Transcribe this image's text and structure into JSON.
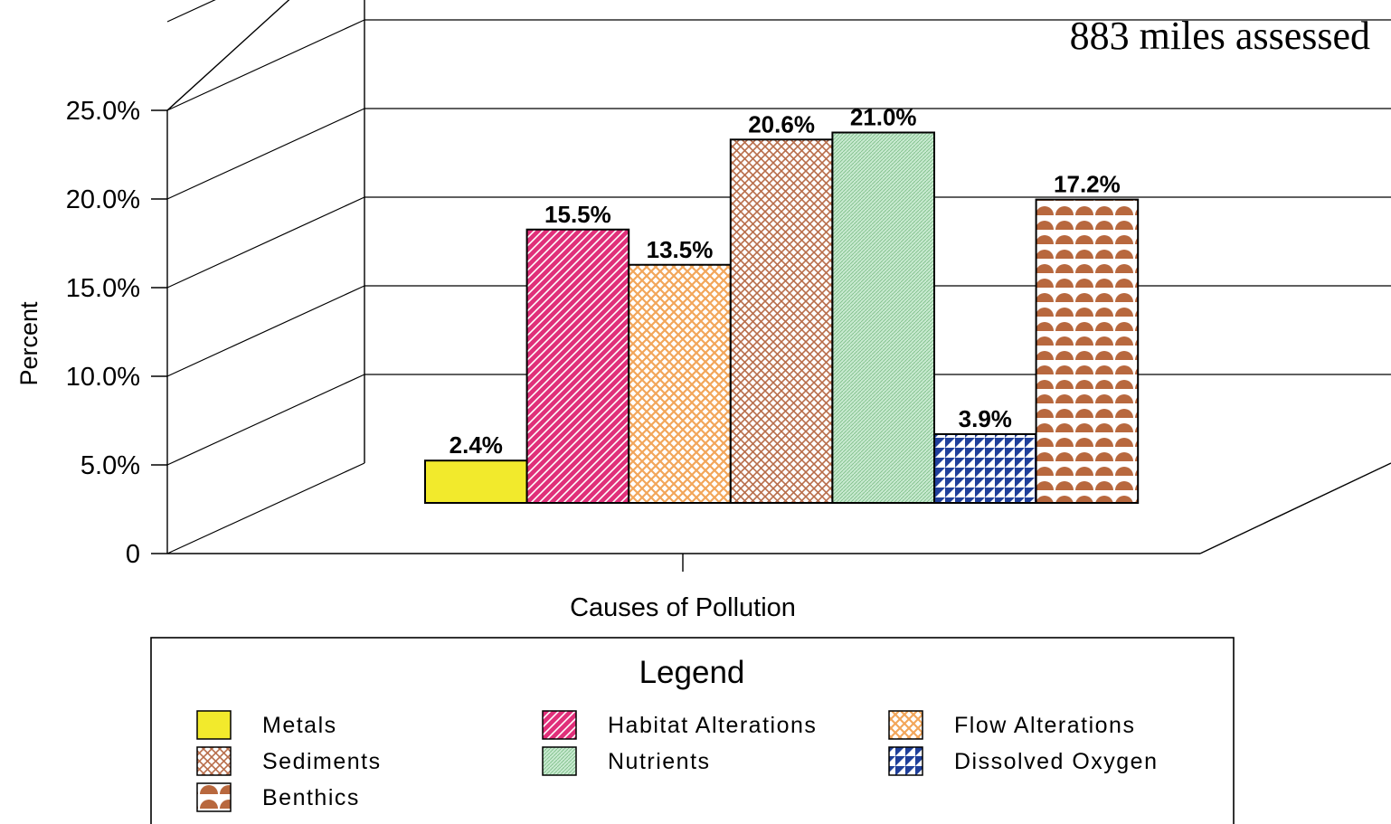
{
  "chart_data": {
    "type": "bar",
    "annotation": "883 miles assessed",
    "xlabel": "Causes of Pollution",
    "ylabel": "Percent",
    "ylim": [
      0,
      25
    ],
    "yticks": [
      "0",
      "5.0%",
      "10.0%",
      "15.0%",
      "20.0%",
      "25.0%"
    ],
    "grid": true,
    "categories": [
      "Metals",
      "Habitat Alterations",
      "Flow Alterations",
      "Sediments",
      "Nutrients",
      "Dissolved Oxygen",
      "Benthics"
    ],
    "values": [
      2.4,
      15.5,
      13.5,
      20.6,
      21.0,
      3.9,
      17.2
    ],
    "value_labels": [
      "2.4%",
      "15.5%",
      "13.5%",
      "20.6%",
      "21.0%",
      "3.9%",
      "17.2%"
    ],
    "colors": [
      "#f2ea2c",
      "#e0307a",
      "#f7c690",
      "#c98a68",
      "#a8d8ae",
      "#2a4ea6",
      "#c07048"
    ],
    "patterns": [
      "solid",
      "diagonal-stripes",
      "basket-weave",
      "crosshatch",
      "fine-dots",
      "triangles",
      "scallops"
    ],
    "legend": {
      "title": "Legend",
      "placement": "bottom",
      "items": [
        "Metals",
        "Habitat Alterations",
        "Flow Alterations",
        "Sediments",
        "Nutrients",
        "Dissolved Oxygen",
        "Benthics"
      ]
    }
  }
}
